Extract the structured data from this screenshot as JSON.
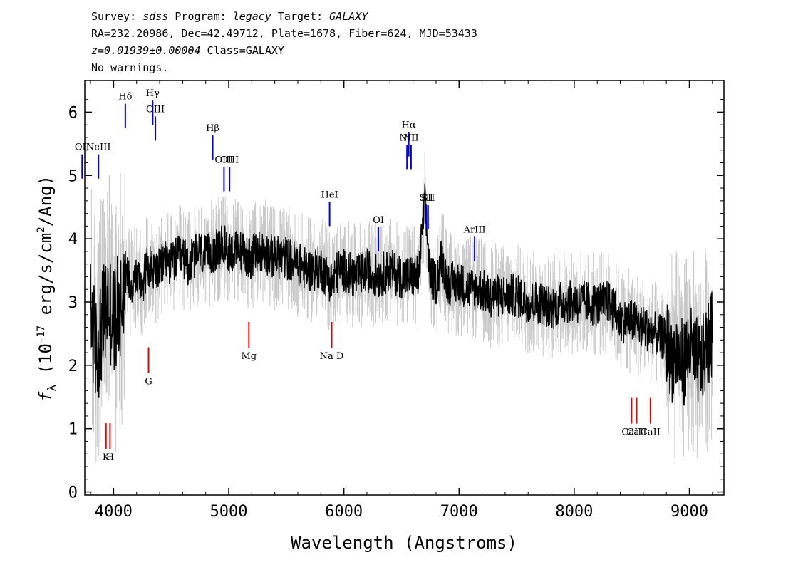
{
  "header": {
    "line1": {
      "survey_label": "Survey: ",
      "survey": "sdss",
      "program_label": " Program: ",
      "program": "legacy",
      "target_label": " Target: ",
      "target": "GALAXY"
    },
    "line2": "RA=232.20986, Dec=42.49712, Plate=1678, Fiber=624, MJD=53433",
    "line3": {
      "redshift": "z=0.01939±0.00004",
      "class": " Class=GALAXY"
    },
    "line4": "No warnings."
  },
  "colors": {
    "flux": "#000000",
    "error": "#c8c8c8",
    "emission_lines": "#0000e6",
    "absorption_lines": "#e60000",
    "axis": "#000000"
  },
  "chart_data": {
    "type": "line",
    "xlabel": "Wavelength (Angstroms)",
    "ylabel_main": "f",
    "ylabel_sub": "λ",
    "ylabel_rest": " (10",
    "ylabel_exp": "−17",
    "ylabel_rest2": " erg/s/cm",
    "ylabel_exp2": "2",
    "ylabel_rest3": "/Ang)",
    "xlim": [
      3750,
      9300
    ],
    "ylim": [
      -0.05,
      6.5
    ],
    "x_ticks": [
      4000,
      5000,
      6000,
      7000,
      8000,
      9000
    ],
    "y_ticks": [
      0,
      1,
      2,
      3,
      4,
      5,
      6
    ],
    "grid": false,
    "series": [
      {
        "role": "flux",
        "x": [
          3800,
          3850,
          3900,
          3950,
          4000,
          4050,
          4100,
          4150,
          4200,
          4250,
          4300,
          4350,
          4400,
          4450,
          4500,
          4550,
          4600,
          4650,
          4700,
          4750,
          4800,
          4850,
          4900,
          4950,
          5000,
          5050,
          5100,
          5150,
          5200,
          5250,
          5300,
          5400,
          5500,
          5600,
          5700,
          5800,
          5850,
          5900,
          5950,
          6000,
          6100,
          6200,
          6300,
          6400,
          6500,
          6600,
          6650,
          6700,
          6750,
          6800,
          6850,
          6900,
          7000,
          7100,
          7200,
          7250,
          7300,
          7400,
          7500,
          7600,
          7700,
          7800,
          7900,
          8000,
          8100,
          8200,
          8300,
          8400,
          8500,
          8600,
          8700,
          8800,
          8850,
          8900,
          8950,
          9000,
          9050,
          9100,
          9150,
          9200
        ],
        "values": [
          2.8,
          2.2,
          2.6,
          3.0,
          2.7,
          2.9,
          3.5,
          3.3,
          3.4,
          3.3,
          3.6,
          3.5,
          3.5,
          3.7,
          3.6,
          3.7,
          3.7,
          3.6,
          3.7,
          3.8,
          3.7,
          3.8,
          3.8,
          3.9,
          3.8,
          3.8,
          3.8,
          3.75,
          3.7,
          3.8,
          3.8,
          3.7,
          3.7,
          3.6,
          3.5,
          3.55,
          3.4,
          3.3,
          3.5,
          3.5,
          3.4,
          3.5,
          3.4,
          3.5,
          3.4,
          3.4,
          3.4,
          4.6,
          3.4,
          3.3,
          3.7,
          3.3,
          3.3,
          3.2,
          3.2,
          3.1,
          3.1,
          3.1,
          3.1,
          3.0,
          3.0,
          2.9,
          3.0,
          3.0,
          3.0,
          2.95,
          3.0,
          2.7,
          2.7,
          2.6,
          2.5,
          2.4,
          2.1,
          2.2,
          2.0,
          2.3,
          2.1,
          2.0,
          2.3,
          2.5
        ]
      }
    ],
    "emission_lines": [
      {
        "label": "OII",
        "wavelength": 3727,
        "label_y": 5.4
      },
      {
        "label": "NeIII",
        "wavelength": 3869,
        "label_y": 5.4
      },
      {
        "label": "Hδ",
        "wavelength": 4102,
        "label_y": 6.2
      },
      {
        "label": "Hγ",
        "wavelength": 4340,
        "label_y": 6.25
      },
      {
        "label": "OIII",
        "wavelength": 4363,
        "label_y": 6.0
      },
      {
        "label": "Hβ",
        "wavelength": 4861,
        "label_y": 5.7
      },
      {
        "label": "OIII",
        "wavelength": 4959,
        "label_y": 5.2
      },
      {
        "label": "OIII",
        "wavelength": 5007,
        "label_y": 5.2
      },
      {
        "label": "HeI",
        "wavelength": 5876,
        "label_y": 4.65
      },
      {
        "label": "OI",
        "wavelength": 6300,
        "label_y": 4.25
      },
      {
        "label": "NII",
        "wavelength": 6548,
        "label_y": 5.55
      },
      {
        "label": "Hα",
        "wavelength": 6563,
        "label_y": 5.75
      },
      {
        "label": "NII",
        "wavelength": 6583,
        "label_y": 5.55
      },
      {
        "label": "SII",
        "wavelength": 6716,
        "label_y": 4.6
      },
      {
        "label": "SII",
        "wavelength": 6731,
        "label_y": 4.6
      },
      {
        "label": "ArIII",
        "wavelength": 7135,
        "label_y": 4.1
      }
    ],
    "absorption_lines": [
      {
        "label": "K",
        "wavelength": 3934,
        "label_y": 0.5
      },
      {
        "label": "H",
        "wavelength": 3969,
        "label_y": 0.5
      },
      {
        "label": "G",
        "wavelength": 4304,
        "label_y": 1.7
      },
      {
        "label": "Mg",
        "wavelength": 5175,
        "label_y": 2.1
      },
      {
        "label": "Na  D",
        "wavelength": 5894,
        "label_y": 2.1
      },
      {
        "label": "CaII",
        "wavelength": 8498,
        "label_y": 0.9
      },
      {
        "label": "CaII",
        "wavelength": 8542,
        "label_y": 0.9
      },
      {
        "label": "CaII",
        "wavelength": 8662,
        "label_y": 0.9
      }
    ]
  }
}
